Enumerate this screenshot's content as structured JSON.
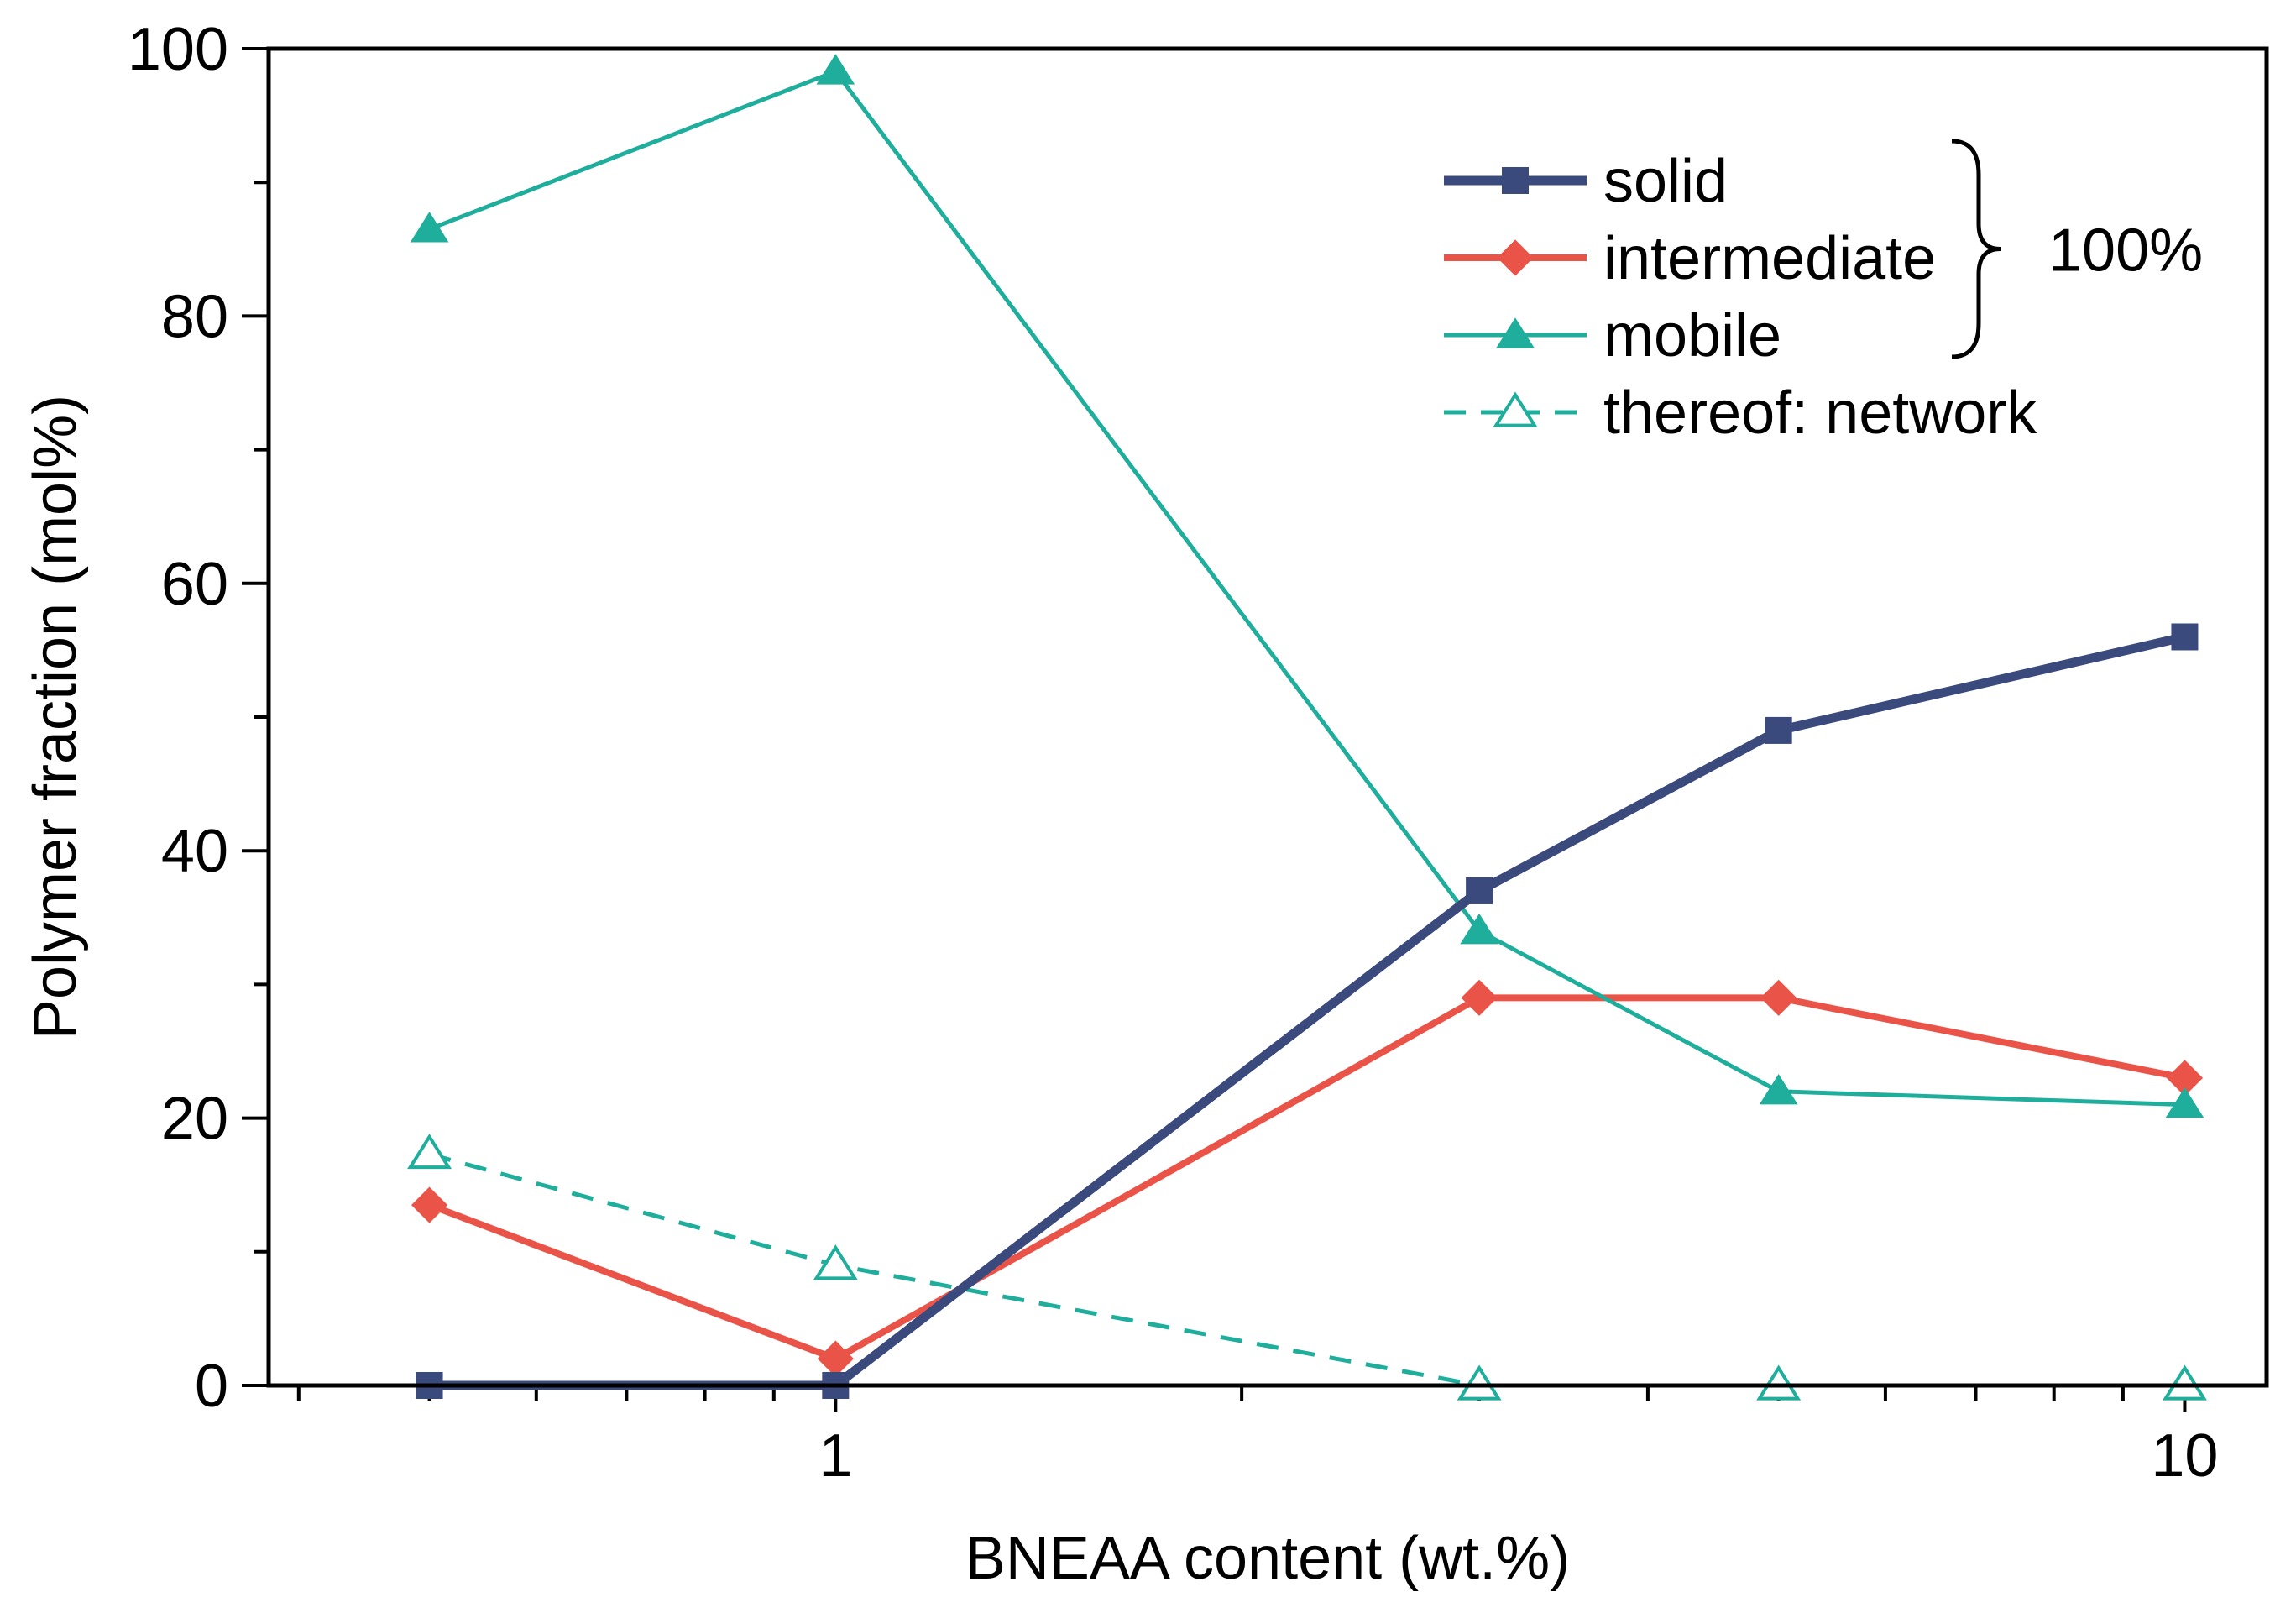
{
  "chart_data": {
    "type": "line",
    "xscale": "log",
    "xlabel": "BNEAA content (wt.%)",
    "ylabel": "Polymer fraction (mol%)",
    "xlim": [
      0.38,
      11.5
    ],
    "ylim": [
      0,
      100
    ],
    "x": [
      0.5,
      1,
      3,
      5,
      10
    ],
    "x_ticks": [
      1,
      10
    ],
    "x_tick_labels": [
      "1",
      "10"
    ],
    "y_ticks": [
      0,
      20,
      40,
      60,
      80,
      100
    ],
    "y_tick_labels": [
      "0",
      "20",
      "40",
      "60",
      "80",
      "100"
    ],
    "series": [
      {
        "name": "solid",
        "values": [
          0,
          0,
          37,
          49,
          56
        ],
        "color": "#3b4a7c",
        "marker": "square",
        "dashed": false,
        "filled": true,
        "width": "thick"
      },
      {
        "name": "intermediate",
        "values": [
          13.5,
          2,
          29,
          29,
          23
        ],
        "color": "#ea5448",
        "marker": "diamond",
        "dashed": false,
        "filled": true,
        "width": "medium"
      },
      {
        "name": "mobile",
        "values": [
          86.5,
          98.3,
          34,
          22,
          21
        ],
        "color": "#20ae9c",
        "marker": "triangle",
        "dashed": false,
        "filled": true,
        "width": "thin"
      },
      {
        "name": "thereof: network",
        "values": [
          17.3,
          9,
          0,
          0,
          0
        ],
        "color": "#20ae9c",
        "marker": "triangle",
        "dashed": true,
        "filled": false,
        "width": "thin"
      }
    ],
    "legend_position": "top-right",
    "annotation": {
      "text": "100%",
      "brace_groups": [
        "solid",
        "intermediate",
        "mobile"
      ]
    }
  }
}
